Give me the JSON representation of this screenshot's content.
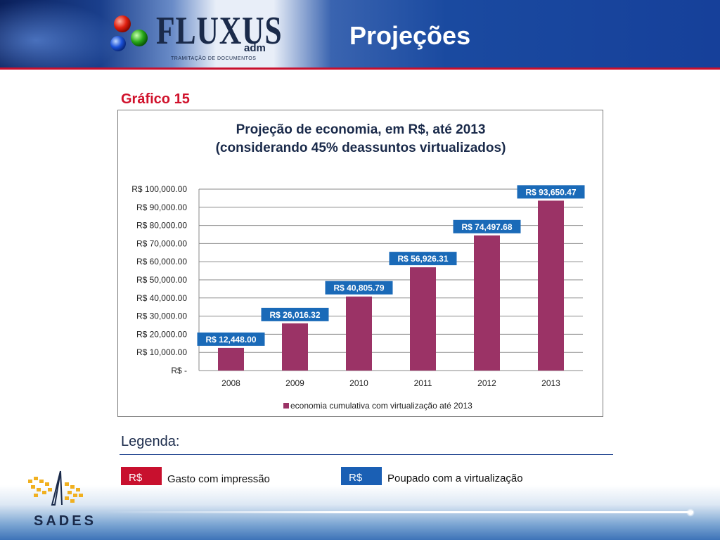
{
  "header": {
    "logo_text": "FLUXUS",
    "logo_suffix": "adm",
    "logo_subtitle": "TRAMITAÇÃO DE DOCUMENTOS",
    "page_title": "Projeções"
  },
  "chart_caption": "Gráfico 15",
  "chart_data": {
    "type": "bar",
    "title_line1": "Projeção de economia, em R$, até 2013",
    "title_line2": "(considerando 45% deassuntos virtualizados)",
    "categories": [
      "2008",
      "2009",
      "2010",
      "2011",
      "2012",
      "2013"
    ],
    "series": [
      {
        "name": "economia cumulativa com virtualização até 2013",
        "values": [
          12448.0,
          26016.32,
          40805.79,
          56926.31,
          74497.68,
          93650.47
        ],
        "labels": [
          "R$ 12,448.00",
          "R$ 26,016.32",
          "R$ 40,805.79",
          "R$ 56,926.31",
          "R$ 74,497.68",
          "R$ 93,650.47"
        ]
      }
    ],
    "ylim": [
      0,
      100000
    ],
    "yticks": [
      0,
      10000,
      20000,
      30000,
      40000,
      50000,
      60000,
      70000,
      80000,
      90000,
      100000
    ],
    "ytick_labels": [
      "R$ -",
      "R$ 10,000.00",
      "R$ 20,000.00",
      "R$ 30,000.00",
      "R$ 40,000.00",
      "R$ 50,000.00",
      "R$ 60,000.00",
      "R$ 70,000.00",
      "R$ 80,000.00",
      "R$ 90,000.00",
      "R$ 100,000.00"
    ],
    "grid": true,
    "legend_position": "bottom",
    "colors": {
      "bar": "#9b3366",
      "label_bg": "#1a6ab8",
      "grid": "#8a8a8a"
    }
  },
  "legend": {
    "title": "Legenda:",
    "items": [
      {
        "swatch": "R$",
        "label": "Gasto com impressão",
        "color": "#c8102e"
      },
      {
        "swatch": "R$",
        "label": "Poupado com a virtualização",
        "color": "#1a5fb4"
      }
    ]
  },
  "footer": {
    "brand": "SADES"
  }
}
